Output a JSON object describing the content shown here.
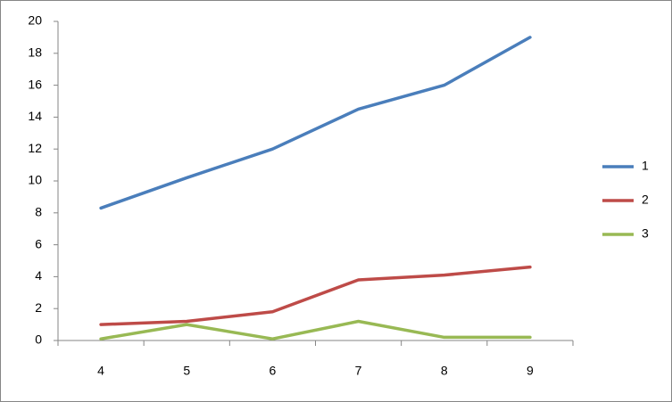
{
  "chart_data": {
    "type": "line",
    "categories": [
      "4",
      "5",
      "6",
      "7",
      "8",
      "9"
    ],
    "series": [
      {
        "name": "1",
        "color": "#4a7ebb",
        "values": [
          8.3,
          10.2,
          12.0,
          14.5,
          16.0,
          19.0
        ]
      },
      {
        "name": "2",
        "color": "#be4b48",
        "values": [
          1.0,
          1.2,
          1.8,
          3.8,
          4.1,
          4.6
        ]
      },
      {
        "name": "3",
        "color": "#98b954",
        "values": [
          0.1,
          1.0,
          0.1,
          1.2,
          0.2,
          0.2
        ]
      }
    ],
    "ylim": [
      0,
      20
    ],
    "yticks": [
      0,
      2,
      4,
      6,
      8,
      10,
      12,
      14,
      16,
      18,
      20
    ],
    "legend": "right"
  }
}
